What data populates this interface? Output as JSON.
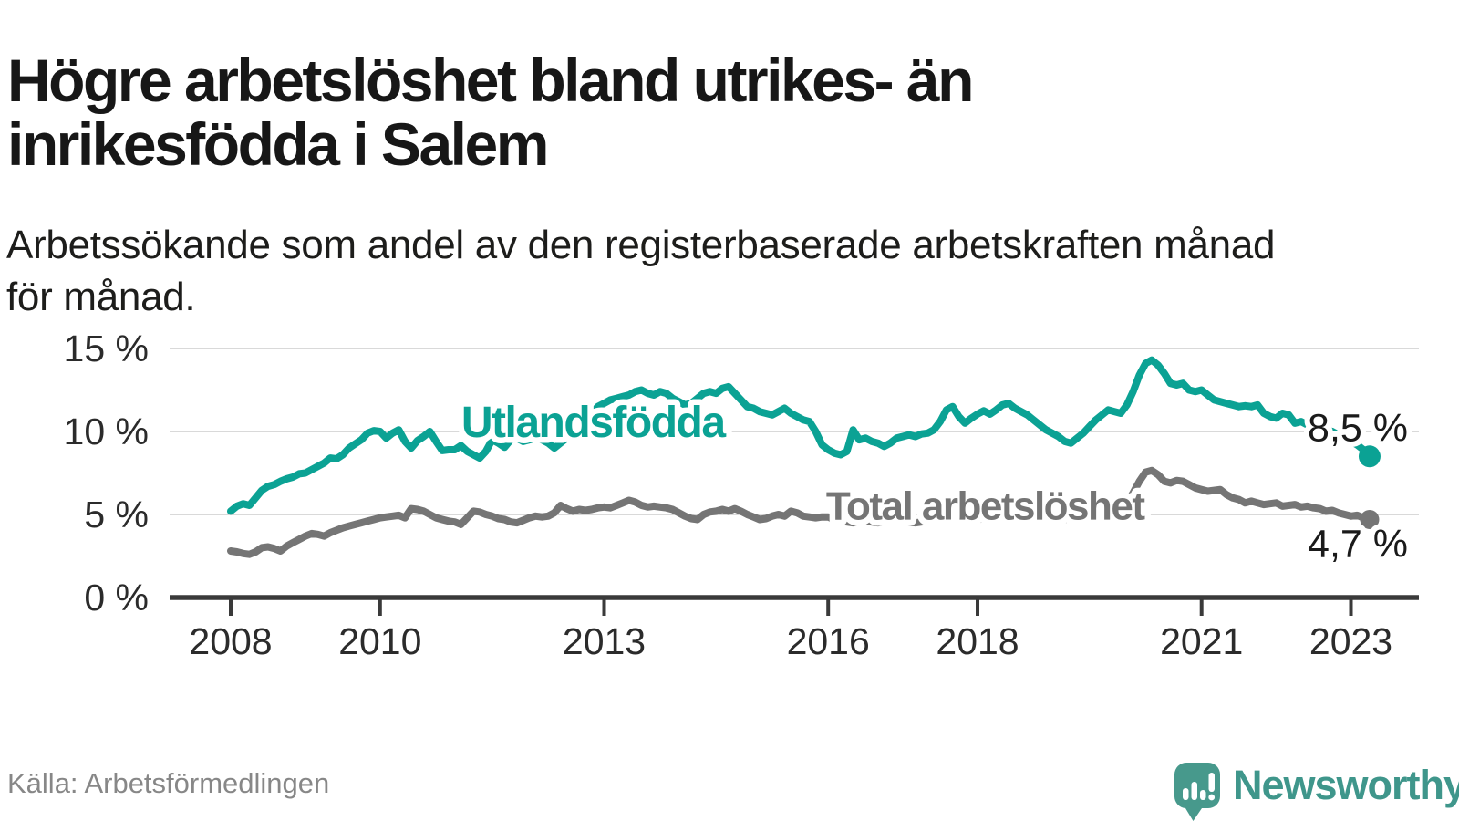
{
  "header": {
    "title_line1": "Högre arbetslöshet bland utrikes- än",
    "title_line2": "inrikesfödda i Salem",
    "subtitle_line1": "Arbetssökande som andel av den registerbaserade arbetskraften månad",
    "subtitle_line2": "för månad."
  },
  "footer": {
    "source": "Källa: Arbetsförmedlingen",
    "brand": "Newsworthy"
  },
  "colors": {
    "series_foreign_born": "#0ba294",
    "series_total": "#757575",
    "grid": "#d9d9d9",
    "axis": "#3a3a3a",
    "tick_label": "#2b2b2b",
    "end_label": "#1a1a1a",
    "logo_teal": "#47998c",
    "background": "#ffffff"
  },
  "chart_data": {
    "type": "line",
    "frequency": "monthly",
    "x_start_year": 2008,
    "x_end_label": "2023",
    "ylim": [
      0,
      15.5
    ],
    "grid": "horizontal",
    "legend_position": "inline-labels",
    "yticks": [
      {
        "value": 0,
        "label": "0 %"
      },
      {
        "value": 5,
        "label": "5 %"
      },
      {
        "value": 10,
        "label": "10 %"
      },
      {
        "value": 15,
        "label": "15 %"
      }
    ],
    "xticks": [
      {
        "year": 2008,
        "label": "2008"
      },
      {
        "year": 2010,
        "label": "2010"
      },
      {
        "year": 2013,
        "label": "2013"
      },
      {
        "year": 2016,
        "label": "2016"
      },
      {
        "year": 2018,
        "label": "2018"
      },
      {
        "year": 2021,
        "label": "2021"
      },
      {
        "year": 2023,
        "label": "2023"
      }
    ],
    "series": [
      {
        "name": "Utlandsfödda",
        "color": "#0ba294",
        "end_label": "8,5 %",
        "end_value": 8.5,
        "annotation": {
          "text": "Utlandsfödda",
          "x_year": 2012.85,
          "y_value": 10.6
        },
        "values": [
          5.2,
          5.5,
          5.65,
          5.55,
          6.0,
          6.45,
          6.7,
          6.8,
          7.0,
          7.15,
          7.25,
          7.45,
          7.5,
          7.7,
          7.9,
          8.1,
          8.4,
          8.35,
          8.6,
          9.0,
          9.25,
          9.5,
          9.9,
          10.05,
          10.0,
          9.6,
          9.9,
          10.1,
          9.4,
          9.0,
          9.45,
          9.7,
          10.0,
          9.4,
          8.85,
          8.9,
          8.9,
          9.15,
          8.8,
          8.6,
          8.4,
          8.8,
          9.5,
          9.3,
          9.05,
          9.5,
          9.6,
          9.4,
          9.5,
          9.6,
          9.5,
          9.3,
          9.0,
          9.3,
          9.6,
          9.9,
          10.3,
          10.7,
          11.1,
          11.5,
          11.7,
          11.9,
          12.0,
          12.1,
          12.2,
          12.4,
          12.5,
          12.3,
          12.2,
          12.4,
          12.3,
          12.0,
          11.8,
          11.6,
          11.7,
          12.0,
          12.3,
          12.4,
          12.3,
          12.6,
          12.7,
          12.3,
          11.9,
          11.5,
          11.4,
          11.2,
          11.1,
          11.0,
          11.2,
          11.4,
          11.1,
          10.9,
          10.7,
          10.6,
          10.0,
          9.2,
          8.9,
          8.7,
          8.6,
          8.8,
          10.1,
          9.5,
          9.6,
          9.4,
          9.3,
          9.1,
          9.3,
          9.6,
          9.7,
          9.8,
          9.7,
          9.85,
          9.9,
          10.1,
          10.6,
          11.3,
          11.5,
          10.9,
          10.5,
          10.8,
          11.05,
          11.25,
          11.05,
          11.3,
          11.6,
          11.7,
          11.4,
          11.2,
          11.0,
          10.7,
          10.4,
          10.1,
          9.9,
          9.7,
          9.4,
          9.3,
          9.6,
          9.9,
          10.3,
          10.7,
          11.0,
          11.3,
          11.2,
          11.1,
          11.6,
          12.4,
          13.4,
          14.1,
          14.3,
          14.0,
          13.5,
          12.9,
          12.8,
          12.9,
          12.5,
          12.4,
          12.5,
          12.2,
          11.9,
          11.8,
          11.7,
          11.6,
          11.5,
          11.55,
          11.5,
          11.6,
          11.1,
          10.9,
          10.8,
          11.1,
          11.0,
          10.5,
          10.6,
          10.4,
          10.3,
          10.0,
          10.1,
          10.0,
          9.8,
          9.6,
          9.4,
          9.2,
          8.9,
          8.5
        ]
      },
      {
        "name": "Total arbetslöshet",
        "color": "#757575",
        "end_label": "4,7 %",
        "end_value": 4.7,
        "annotation": {
          "text": "Total arbetslöshet",
          "x_year": 2018.1,
          "y_value": 5.55
        },
        "values": [
          2.8,
          2.75,
          2.65,
          2.6,
          2.75,
          3.0,
          3.05,
          2.95,
          2.8,
          3.1,
          3.3,
          3.5,
          3.7,
          3.85,
          3.8,
          3.7,
          3.9,
          4.05,
          4.2,
          4.3,
          4.4,
          4.5,
          4.6,
          4.7,
          4.8,
          4.85,
          4.9,
          4.95,
          4.8,
          5.35,
          5.3,
          5.2,
          5.0,
          4.8,
          4.7,
          4.6,
          4.55,
          4.4,
          4.8,
          5.2,
          5.15,
          5.0,
          4.9,
          4.75,
          4.7,
          4.55,
          4.5,
          4.65,
          4.8,
          4.9,
          4.85,
          4.9,
          5.1,
          5.55,
          5.35,
          5.2,
          5.3,
          5.25,
          5.3,
          5.4,
          5.45,
          5.4,
          5.55,
          5.7,
          5.85,
          5.75,
          5.55,
          5.45,
          5.5,
          5.45,
          5.4,
          5.3,
          5.1,
          4.9,
          4.75,
          4.7,
          5.0,
          5.15,
          5.2,
          5.3,
          5.2,
          5.35,
          5.2,
          5.0,
          4.85,
          4.7,
          4.75,
          4.9,
          5.0,
          4.9,
          5.2,
          5.1,
          4.9,
          4.85,
          4.8,
          4.85,
          4.85,
          4.7,
          4.6,
          4.55,
          4.5,
          4.6,
          4.65,
          4.55,
          4.5,
          4.6,
          4.7,
          4.65,
          4.6,
          4.55,
          4.5,
          4.55,
          4.6,
          4.7,
          4.8,
          4.75,
          4.7,
          4.65,
          4.6,
          4.65,
          4.7,
          4.75,
          4.7,
          4.8,
          4.9,
          4.95,
          4.9,
          4.85,
          4.8,
          4.75,
          4.7,
          4.75,
          4.8,
          4.75,
          4.7,
          4.8,
          4.9,
          5.0,
          5.1,
          5.15,
          5.2,
          5.25,
          5.3,
          5.4,
          5.7,
          6.3,
          7.0,
          7.55,
          7.65,
          7.4,
          7.0,
          6.9,
          7.05,
          7.0,
          6.8,
          6.6,
          6.5,
          6.4,
          6.45,
          6.5,
          6.2,
          6.0,
          5.9,
          5.7,
          5.8,
          5.7,
          5.6,
          5.65,
          5.7,
          5.5,
          5.55,
          5.6,
          5.45,
          5.5,
          5.4,
          5.35,
          5.2,
          5.25,
          5.1,
          5.0,
          4.9,
          4.95,
          4.8,
          4.7
        ]
      }
    ]
  }
}
